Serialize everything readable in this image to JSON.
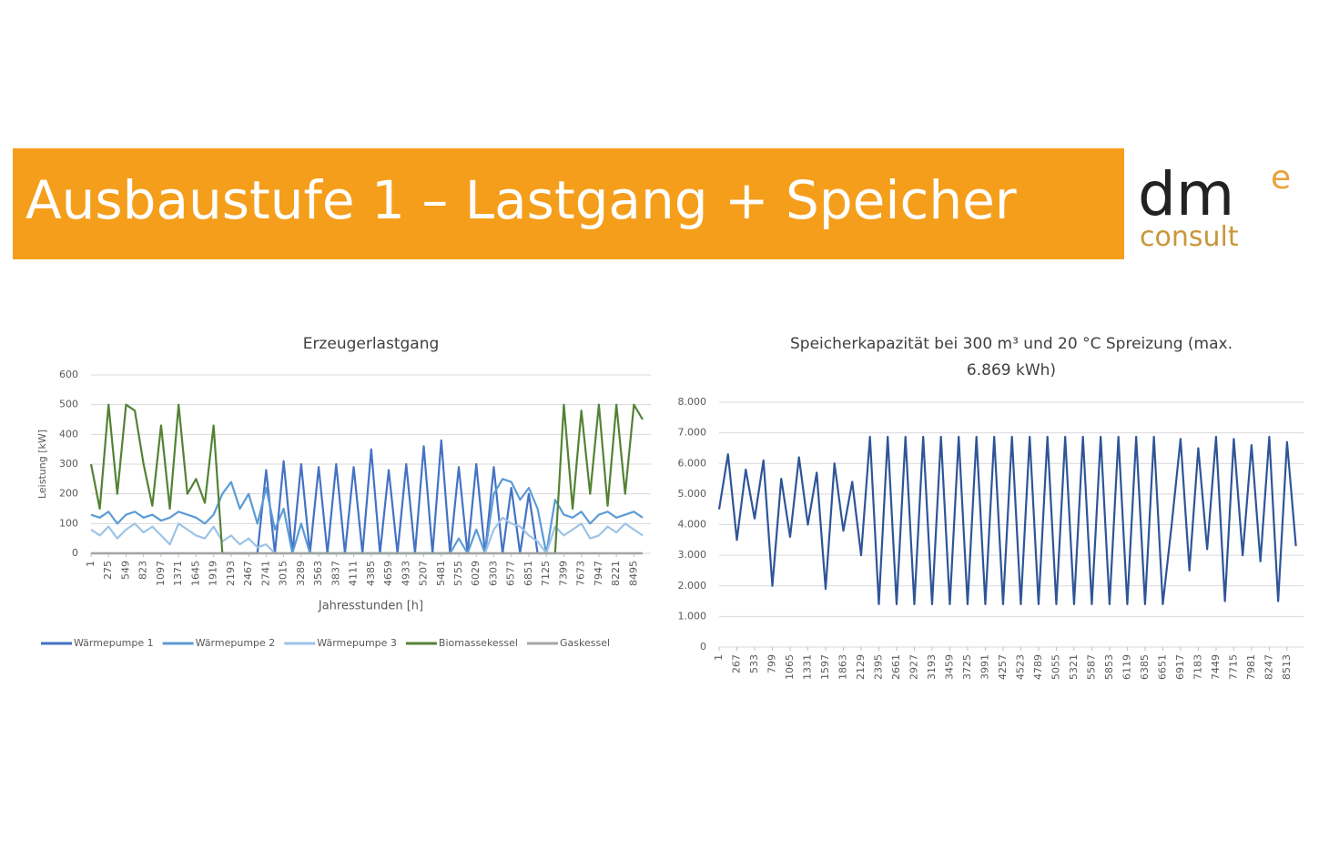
{
  "header": {
    "title": "Ausbaustufe 1 – Lastgang + Speicher",
    "logo": {
      "dm": "dm",
      "e": "e",
      "consult": "consult"
    }
  },
  "chart_data": [
    {
      "type": "line",
      "title": [
        "Erzeugerlastgang"
      ],
      "xlabel": "Jahresstunden [h]",
      "ylabel": "Leistung [kW]",
      "x": [
        1,
        138,
        275,
        412,
        549,
        686,
        823,
        960,
        1097,
        1234,
        1371,
        1508,
        1645,
        1782,
        1919,
        2056,
        2193,
        2330,
        2467,
        2604,
        2741,
        2878,
        3015,
        3152,
        3289,
        3426,
        3563,
        3700,
        3837,
        3974,
        4111,
        4248,
        4385,
        4522,
        4659,
        4796,
        4933,
        5070,
        5207,
        5344,
        5481,
        5618,
        5755,
        5892,
        6029,
        6166,
        6303,
        6440,
        6577,
        6714,
        6851,
        6988,
        7125,
        7262,
        7399,
        7536,
        7673,
        7810,
        7947,
        8084,
        8221,
        8358,
        8495,
        8632
      ],
      "series": [
        {
          "name": "Wärmepumpe 1",
          "color": "#4472c4",
          "values": [
            0,
            0,
            0,
            0,
            0,
            0,
            0,
            0,
            0,
            0,
            0,
            0,
            0,
            0,
            0,
            0,
            0,
            0,
            0,
            0,
            280,
            0,
            310,
            0,
            300,
            0,
            290,
            0,
            300,
            0,
            290,
            0,
            350,
            0,
            280,
            0,
            300,
            0,
            360,
            0,
            380,
            0,
            290,
            0,
            300,
            0,
            290,
            0,
            220,
            0,
            200,
            0,
            0,
            0,
            0,
            0,
            0,
            0,
            0,
            0,
            0,
            0,
            0,
            0
          ]
        },
        {
          "name": "Wärmepumpe 2",
          "color": "#5b9bd5",
          "values": [
            130,
            120,
            140,
            100,
            130,
            140,
            120,
            130,
            110,
            120,
            140,
            130,
            120,
            100,
            130,
            200,
            240,
            150,
            200,
            100,
            220,
            80,
            150,
            0,
            100,
            0,
            0,
            0,
            0,
            0,
            0,
            0,
            0,
            0,
            0,
            0,
            0,
            0,
            0,
            0,
            0,
            0,
            50,
            0,
            80,
            0,
            200,
            250,
            240,
            180,
            220,
            150,
            0,
            180,
            130,
            120,
            140,
            100,
            130,
            140,
            120,
            130,
            140,
            120
          ]
        },
        {
          "name": "Wärmepumpe 3",
          "color": "#9dc3e6",
          "values": [
            80,
            60,
            90,
            50,
            80,
            100,
            70,
            90,
            60,
            30,
            100,
            80,
            60,
            50,
            90,
            40,
            60,
            30,
            50,
            20,
            30,
            0,
            0,
            0,
            0,
            0,
            0,
            0,
            0,
            0,
            0,
            0,
            0,
            0,
            0,
            0,
            0,
            0,
            0,
            0,
            0,
            0,
            0,
            0,
            0,
            0,
            80,
            120,
            100,
            90,
            60,
            40,
            0,
            90,
            60,
            80,
            100,
            50,
            60,
            90,
            70,
            100,
            80,
            60
          ]
        },
        {
          "name": "Biomassekessel",
          "color": "#548235",
          "values": [
            300,
            150,
            500,
            200,
            500,
            480,
            300,
            160,
            430,
            150,
            500,
            200,
            250,
            170,
            430,
            0,
            0,
            0,
            0,
            0,
            0,
            0,
            0,
            0,
            0,
            0,
            0,
            0,
            0,
            0,
            0,
            0,
            0,
            0,
            0,
            0,
            0,
            0,
            0,
            0,
            0,
            0,
            0,
            0,
            0,
            0,
            0,
            0,
            0,
            0,
            0,
            0,
            0,
            0,
            500,
            150,
            480,
            200,
            500,
            160,
            500,
            200,
            500,
            450
          ]
        },
        {
          "name": "Gaskessel",
          "color": "#a5a5a5",
          "values": [
            0,
            0,
            0,
            0,
            0,
            0,
            0,
            0,
            0,
            0,
            0,
            0,
            0,
            0,
            0,
            0,
            0,
            0,
            0,
            0,
            0,
            0,
            0,
            0,
            0,
            0,
            0,
            0,
            0,
            0,
            0,
            0,
            0,
            0,
            0,
            0,
            0,
            0,
            0,
            0,
            0,
            0,
            0,
            0,
            0,
            0,
            0,
            0,
            0,
            0,
            0,
            0,
            0,
            0,
            0,
            0,
            0,
            0,
            0,
            0,
            0,
            0,
            0,
            0
          ]
        }
      ],
      "xlim": [
        1,
        8760
      ],
      "xticks": [
        1,
        275,
        549,
        823,
        1097,
        1371,
        1645,
        1919,
        2193,
        2467,
        2741,
        3015,
        3289,
        3563,
        3837,
        4111,
        4385,
        4659,
        4933,
        5207,
        5481,
        5755,
        6029,
        6303,
        6577,
        6851,
        7125,
        7399,
        7673,
        7947,
        8221,
        8495
      ],
      "ylim": [
        0,
        600
      ],
      "yticks": [
        0,
        100,
        200,
        300,
        400,
        500,
        600
      ],
      "grid": true,
      "legend": "bottom"
    },
    {
      "type": "line",
      "title": [
        "Speicherkapazität bei 300 m³ und 20 °C Spreizung (max.",
        "6.869 kWh)"
      ],
      "x": [
        1,
        134,
        267,
        400,
        533,
        666,
        799,
        932,
        1065,
        1198,
        1331,
        1464,
        1597,
        1730,
        1863,
        1996,
        2129,
        2262,
        2395,
        2528,
        2661,
        2794,
        2927,
        3060,
        3193,
        3326,
        3459,
        3592,
        3725,
        3858,
        3991,
        4124,
        4257,
        4390,
        4523,
        4656,
        4789,
        4922,
        5055,
        5188,
        5321,
        5454,
        5587,
        5720,
        5853,
        5986,
        6119,
        6252,
        6385,
        6518,
        6651,
        6784,
        6917,
        7050,
        7183,
        7316,
        7449,
        7582,
        7715,
        7848,
        7981,
        8114,
        8247,
        8380,
        8513,
        8646
      ],
      "series": [
        {
          "name": "Speicherkapazität",
          "color": "#2f5597",
          "values": [
            4500,
            6300,
            3500,
            5800,
            4200,
            6100,
            2000,
            5500,
            3600,
            6200,
            4000,
            5700,
            1900,
            6000,
            3800,
            5400,
            3000,
            6869,
            1400,
            6869,
            1400,
            6869,
            1400,
            6869,
            1400,
            6869,
            1400,
            6869,
            1400,
            6869,
            1400,
            6869,
            1400,
            6869,
            1400,
            6869,
            1400,
            6869,
            1400,
            6869,
            1400,
            6869,
            1400,
            6869,
            1400,
            6869,
            1400,
            6869,
            1400,
            6869,
            1400,
            4000,
            6800,
            2500,
            6500,
            3200,
            6869,
            1500,
            6800,
            3000,
            6600,
            2800,
            6869,
            1500,
            6700,
            3300
          ]
        }
      ],
      "xlim": [
        1,
        8760
      ],
      "xticks": [
        1,
        267,
        533,
        799,
        1065,
        1331,
        1597,
        1863,
        2129,
        2395,
        2661,
        2927,
        3193,
        3459,
        3725,
        3991,
        4257,
        4523,
        4789,
        5055,
        5321,
        5587,
        5853,
        6119,
        6385,
        6651,
        6917,
        7183,
        7449,
        7715,
        7981,
        8247,
        8513
      ],
      "ylim": [
        0,
        8000
      ],
      "yticks": [
        0,
        {
          "value": 1000,
          "label": "1.000"
        },
        {
          "value": 2000,
          "label": "2.000"
        },
        {
          "value": 3000,
          "label": "3.000"
        },
        {
          "value": 4000,
          "label": "4.000"
        },
        {
          "value": 5000,
          "label": "5.000"
        },
        {
          "value": 6000,
          "label": "6.000"
        },
        {
          "value": 7000,
          "label": "7.000"
        },
        {
          "value": 8000,
          "label": "8.000"
        }
      ],
      "grid": true
    }
  ]
}
